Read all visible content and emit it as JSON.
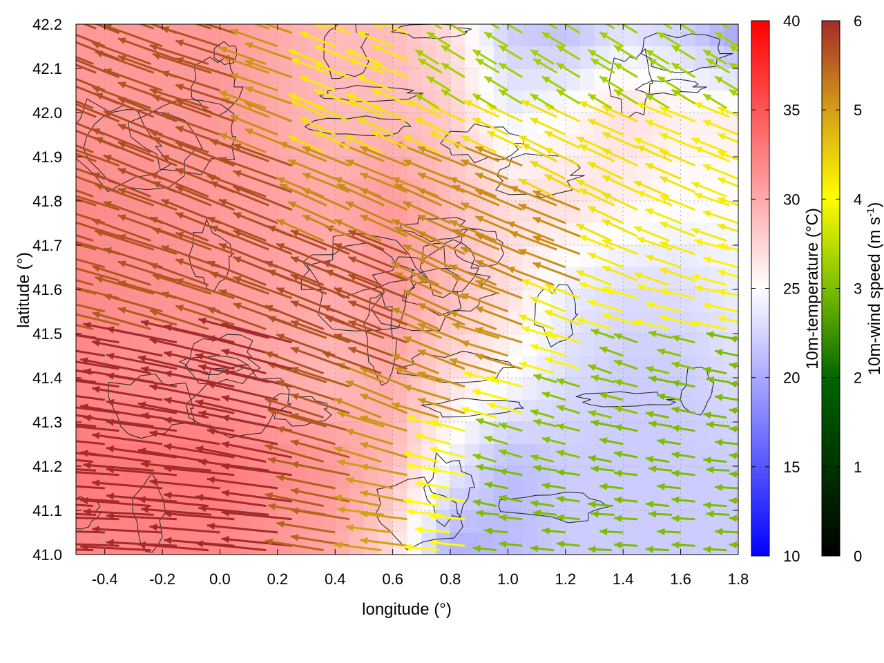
{
  "chart_data": {
    "type": "heatmap",
    "title": "",
    "xlabel": "longitude (°)",
    "ylabel": "latitude (°)",
    "xlim": [
      -0.5,
      1.8
    ],
    "ylim": [
      41.0,
      42.2
    ],
    "x_ticks": [
      "-0.4",
      "-0.2",
      "0.0",
      "0.2",
      "0.4",
      "0.6",
      "0.8",
      "1.0",
      "1.2",
      "1.4",
      "1.6",
      "1.8"
    ],
    "y_ticks": [
      "41.0",
      "41.1",
      "41.2",
      "41.3",
      "41.4",
      "41.5",
      "41.6",
      "41.7",
      "41.8",
      "41.9",
      "42.0",
      "42.1",
      "42.2"
    ],
    "grid": true,
    "layers": {
      "background": "10m-temperature colour map",
      "contours": "contour lines",
      "vectors": "10m-wind arrows coloured by speed"
    },
    "colorbars": [
      {
        "label": "10m-temperature (°C)",
        "range": [
          10,
          40
        ],
        "ticks": [
          "10",
          "15",
          "20",
          "25",
          "30",
          "35",
          "40"
        ],
        "colors": [
          "#0000ff",
          "#ffffff",
          "#ff0000"
        ]
      },
      {
        "label_main": "10m-wind speed (m s",
        "label_sup": "-1",
        "label_end": ")",
        "range": [
          0,
          6
        ],
        "ticks": [
          "0",
          "1",
          "2",
          "3",
          "4",
          "5",
          "6"
        ],
        "colors": [
          "#000000",
          "#006400",
          "#7cbd00",
          "#ffff00",
          "#d4a017",
          "#b5651d",
          "#a52a2a"
        ]
      }
    ],
    "temperature_field": {
      "x": [
        -0.5,
        0.0,
        0.4,
        0.6,
        0.8,
        1.0,
        1.2,
        1.4,
        1.6,
        1.8
      ],
      "y": [
        41.0,
        41.2,
        41.4,
        41.6,
        41.8,
        42.0,
        42.2
      ],
      "values": [
        [
          32,
          32,
          30,
          27,
          20,
          21,
          22,
          22,
          22,
          22
        ],
        [
          33,
          33,
          31,
          29,
          24,
          21,
          22,
          22,
          22,
          22
        ],
        [
          32,
          31,
          29,
          30,
          27,
          25,
          23,
          22,
          22,
          23
        ],
        [
          32,
          31,
          30,
          31,
          29,
          27,
          24,
          23,
          23,
          24
        ],
        [
          32,
          31,
          30,
          31,
          29,
          27,
          27,
          26,
          25,
          25
        ],
        [
          31,
          31,
          29,
          29,
          28,
          24,
          25,
          27,
          26,
          26
        ],
        [
          31,
          31,
          29,
          29,
          27,
          22,
          21,
          23,
          22,
          19
        ]
      ]
    },
    "wind_field": {
      "x": [
        -0.4,
        -0.2,
        0.0,
        0.2,
        0.4,
        0.6,
        0.8,
        1.0,
        1.2,
        1.4,
        1.6,
        1.8
      ],
      "y": [
        41.05,
        41.15,
        41.25,
        41.35,
        41.45,
        41.55,
        41.65,
        41.75,
        41.85,
        41.95,
        42.05,
        42.15
      ],
      "u": [
        [
          -6,
          -6,
          -6,
          -6,
          -5,
          -4,
          -3,
          -2,
          -2,
          -2,
          -2,
          -2
        ],
        [
          -6,
          -6,
          -6,
          -6,
          -5,
          -4,
          -3,
          -2,
          -2,
          -2,
          -2,
          -2
        ],
        [
          -6,
          -6,
          -6,
          -6,
          -5,
          -4,
          -3,
          -2,
          -2,
          -2,
          -2,
          -2
        ],
        [
          -6,
          -6,
          -6,
          -6,
          -5,
          -4,
          -4,
          -3,
          -2,
          -2,
          -2,
          -2
        ],
        [
          -6,
          -6,
          -6,
          -6,
          -5,
          -5,
          -4,
          -4,
          -3,
          -2,
          -2,
          -2
        ],
        [
          -5,
          -5,
          -5,
          -5,
          -5,
          -5,
          -4,
          -4,
          -3,
          -3,
          -3,
          -3
        ],
        [
          -5,
          -5,
          -5,
          -5,
          -5,
          -5,
          -4,
          -4,
          -4,
          -3,
          -3,
          -3
        ],
        [
          -5,
          -5,
          -5,
          -5,
          -4,
          -4,
          -4,
          -4,
          -4,
          -3,
          -3,
          -3
        ],
        [
          -5,
          -5,
          -5,
          -5,
          -4,
          -4,
          -4,
          -4,
          -3,
          -3,
          -3,
          -3
        ],
        [
          -5,
          -5,
          -5,
          -4,
          -3,
          -3,
          -3,
          -3,
          -3,
          -3,
          -3,
          -3
        ],
        [
          -5,
          -5,
          -5,
          -4,
          -3,
          -3,
          -2,
          -2,
          -2,
          -2,
          -2,
          -2
        ],
        [
          -5,
          -5,
          -5,
          -4,
          -3,
          -3,
          -2,
          -2,
          -2,
          -2,
          -2,
          -2
        ]
      ],
      "v": [
        [
          0.2,
          0.3,
          0.5,
          0.6,
          0.8,
          0.5,
          0.3,
          0.2,
          0.2,
          0.1,
          0.1,
          0.1
        ],
        [
          0.4,
          0.5,
          0.6,
          0.8,
          1.0,
          0.8,
          0.5,
          0.4,
          0.3,
          0.2,
          0.2,
          0.1
        ],
        [
          0.6,
          0.8,
          1.0,
          1.2,
          1.4,
          1.2,
          0.8,
          0.6,
          0.5,
          0.4,
          0.3,
          0.2
        ],
        [
          0.8,
          1.0,
          1.2,
          1.4,
          1.6,
          1.6,
          1.2,
          0.8,
          0.6,
          0.5,
          0.4,
          0.3
        ],
        [
          1.0,
          1.2,
          1.4,
          1.6,
          1.8,
          1.8,
          1.6,
          1.2,
          0.9,
          0.7,
          0.5,
          0.4
        ],
        [
          1.2,
          1.4,
          1.6,
          1.8,
          2.0,
          2.0,
          1.8,
          1.5,
          1.2,
          0.9,
          0.7,
          0.6
        ],
        [
          1.4,
          1.6,
          1.8,
          2.0,
          2.0,
          2.0,
          1.9,
          1.7,
          1.5,
          1.2,
          1.0,
          0.8
        ],
        [
          1.6,
          1.8,
          2.0,
          2.0,
          1.8,
          1.8,
          1.8,
          1.7,
          1.6,
          1.4,
          1.2,
          1.0
        ],
        [
          1.8,
          2.0,
          2.0,
          1.8,
          1.6,
          1.6,
          1.6,
          1.6,
          1.5,
          1.4,
          1.3,
          1.2
        ],
        [
          2.0,
          2.0,
          1.8,
          1.6,
          1.4,
          1.4,
          1.4,
          1.4,
          1.4,
          1.3,
          1.2,
          1.2
        ],
        [
          2.0,
          1.8,
          1.6,
          1.4,
          1.2,
          1.2,
          1.2,
          1.2,
          1.2,
          1.2,
          1.2,
          1.2
        ],
        [
          2.0,
          1.8,
          1.6,
          1.4,
          1.2,
          1.2,
          1.2,
          1.2,
          1.2,
          1.2,
          1.2,
          1.2
        ]
      ],
      "speed": [
        [
          6.0,
          6.0,
          6.0,
          6.0,
          5.0,
          4.0,
          3.0,
          2.0,
          2.0,
          2.0,
          2.0,
          2.0
        ],
        [
          6.0,
          6.0,
          6.0,
          6.0,
          5.1,
          4.1,
          3.0,
          2.0,
          2.0,
          2.0,
          2.0,
          2.0
        ],
        [
          6.0,
          6.0,
          6.0,
          6.0,
          5.2,
          4.2,
          3.1,
          2.1,
          2.1,
          2.0,
          2.0,
          2.0
        ],
        [
          6.0,
          6.0,
          6.0,
          6.0,
          5.2,
          4.3,
          4.2,
          3.1,
          2.1,
          2.1,
          2.0,
          2.0
        ],
        [
          6.0,
          6.0,
          6.0,
          6.0,
          5.3,
          5.3,
          4.3,
          4.2,
          3.1,
          2.1,
          2.1,
          2.0
        ],
        [
          5.1,
          5.2,
          5.2,
          5.3,
          5.4,
          5.4,
          4.4,
          4.3,
          3.2,
          3.1,
          3.1,
          3.1
        ],
        [
          5.2,
          5.3,
          5.3,
          5.4,
          5.4,
          5.4,
          4.4,
          4.4,
          4.3,
          3.2,
          3.2,
          3.1
        ],
        [
          5.3,
          5.3,
          5.4,
          5.4,
          4.4,
          4.4,
          4.4,
          4.3,
          4.3,
          3.3,
          3.2,
          3.2
        ],
        [
          5.3,
          5.4,
          5.4,
          5.3,
          4.3,
          4.3,
          4.3,
          4.3,
          3.4,
          3.3,
          3.3,
          3.2
        ],
        [
          5.4,
          5.4,
          5.3,
          4.3,
          3.3,
          3.3,
          3.3,
          3.3,
          3.3,
          3.3,
          3.2,
          3.2
        ],
        [
          5.4,
          5.3,
          5.3,
          4.2,
          3.2,
          3.2,
          2.3,
          2.3,
          2.3,
          2.3,
          2.3,
          2.3
        ],
        [
          5.4,
          5.3,
          5.3,
          4.2,
          3.2,
          3.2,
          2.3,
          2.3,
          2.3,
          2.3,
          2.3,
          2.3
        ]
      ]
    }
  }
}
